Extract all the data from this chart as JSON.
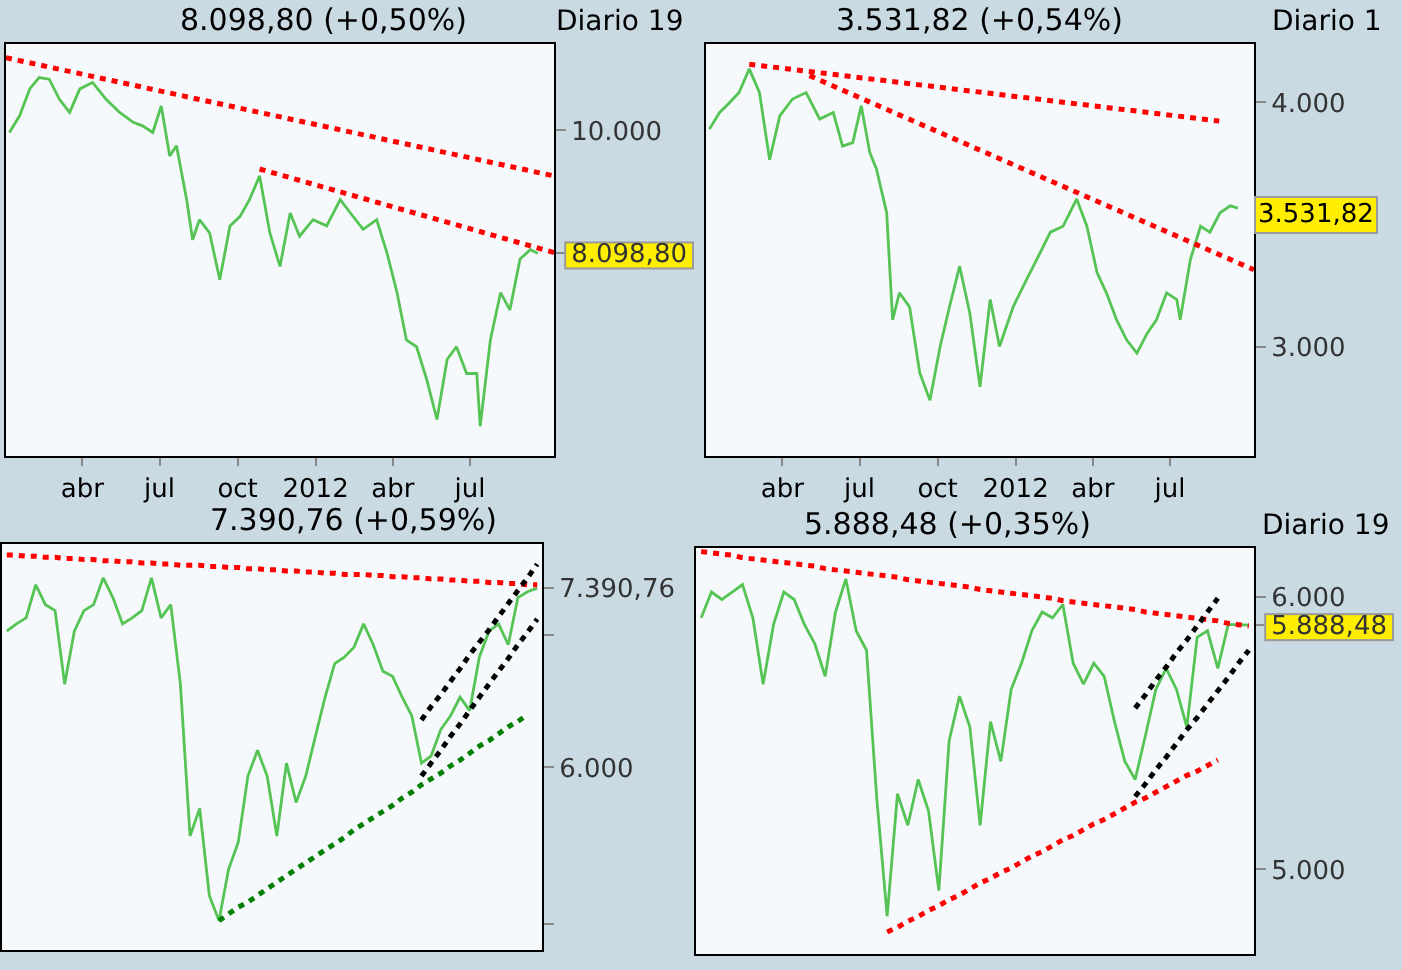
{
  "chart_data": [
    {
      "type": "line",
      "title": "8.098,80 (+0,50%)",
      "subtitle": "Diario 19",
      "log": true,
      "x": [
        "2011-01-05",
        "2011-01-17",
        "2011-01-29",
        "2011-02-09",
        "2011-02-21",
        "2011-03-05",
        "2011-03-17",
        "2011-03-29",
        "2011-04-13",
        "2011-04-29",
        "2011-05-15",
        "2011-05-31",
        "2011-06-11",
        "2011-06-23",
        "2011-07-03",
        "2011-07-13",
        "2011-07-21",
        "2011-08-02",
        "2011-08-09",
        "2011-08-17",
        "2011-08-29",
        "2011-09-10",
        "2011-09-22",
        "2011-10-04",
        "2011-10-15",
        "2011-10-27",
        "2011-11-08",
        "2011-11-20",
        "2011-12-02",
        "2011-12-13",
        "2011-12-29",
        "2012-01-14",
        "2012-01-30",
        "2012-02-11",
        "2012-02-26",
        "2012-03-13",
        "2012-03-25",
        "2012-04-06",
        "2012-04-17",
        "2012-04-29",
        "2012-05-11",
        "2012-05-23",
        "2012-06-04",
        "2012-06-15",
        "2012-06-27",
        "2012-07-09",
        "2012-07-13",
        "2012-07-25",
        "2012-08-06",
        "2012-08-17",
        "2012-08-29",
        "2012-09-10",
        "2012-09-19"
      ],
      "series": [
        {
          "color": "#55c455",
          "values": [
            9966,
            10256,
            10740,
            10950,
            10920,
            10550,
            10315,
            10740,
            10860,
            10550,
            10315,
            10140,
            10080,
            9966,
            10430,
            9570,
            9740,
            8880,
            8290,
            8580,
            8390,
            7740,
            8490,
            8630,
            8880,
            9250,
            8390,
            7920,
            8680,
            8340,
            8580,
            8490,
            8880,
            8680,
            8440,
            8580,
            8110,
            7570,
            6980,
            6900,
            6520,
            6090,
            6750,
            6900,
            6590,
            6590,
            6020,
            6980,
            7570,
            7350,
            8020,
            8150,
            8098.8
          ]
        },
        {
          "type": "line",
          "color": "#ff0000",
          "line_style": "dotted",
          "x": [
            "2011-01-01",
            "2012-10-08"
          ],
          "values": [
            11330,
            9250
          ]
        },
        {
          "type": "line",
          "color": "#ff0000",
          "line_style": "dotted",
          "x": [
            "2011-10-27",
            "2012-10-08"
          ],
          "values": [
            9360,
            8110
          ]
        }
      ],
      "xlim": [
        "2011-01-01",
        "2012-10-08"
      ],
      "xticks": [
        {
          "value": "2011-04-01",
          "label": "abr"
        },
        {
          "value": "2011-07-01",
          "label": "jul"
        },
        {
          "value": "2011-10-01",
          "label": "oct"
        },
        {
          "value": "2012-01-01",
          "label": "2012"
        },
        {
          "value": "2012-04-01",
          "label": "abr"
        },
        {
          "value": "2012-07-01",
          "label": "jul"
        }
      ],
      "ylim": [
        5720,
        11600
      ],
      "yticks": [
        {
          "value": 8098.8,
          "label": "8.098,80"
        },
        {
          "value": 10000,
          "label": "10.000"
        }
      ]
    },
    {
      "type": "line",
      "title": "3.531,82 (+0,54%)",
      "subtitle": "Diario 1",
      "log": true,
      "x": [
        "2011-01-05",
        "2011-01-17",
        "2011-01-29",
        "2011-02-09",
        "2011-02-21",
        "2011-03-05",
        "2011-03-17",
        "2011-03-29",
        "2011-04-13",
        "2011-04-29",
        "2011-05-15",
        "2011-05-31",
        "2011-06-11",
        "2011-06-23",
        "2011-07-03",
        "2011-07-13",
        "2011-07-21",
        "2011-08-02",
        "2011-08-09",
        "2011-08-17",
        "2011-08-29",
        "2011-09-10",
        "2011-09-22",
        "2011-10-04",
        "2011-10-15",
        "2011-10-27",
        "2011-11-08",
        "2011-11-20",
        "2011-12-02",
        "2011-12-13",
        "2011-12-29",
        "2012-01-14",
        "2012-01-30",
        "2012-02-11",
        "2012-02-26",
        "2012-03-13",
        "2012-03-25",
        "2012-04-06",
        "2012-04-17",
        "2012-04-29",
        "2012-05-11",
        "2012-05-23",
        "2012-06-04",
        "2012-06-15",
        "2012-06-27",
        "2012-07-09",
        "2012-07-13",
        "2012-07-25",
        "2012-08-06",
        "2012-08-17",
        "2012-08-29",
        "2012-09-10",
        "2012-09-19"
      ],
      "series": [
        {
          "color": "#55c455",
          "values": [
            3876,
            3953,
            4000,
            4047,
            4161,
            4047,
            3739,
            3937,
            4016,
            4047,
            3922,
            3953,
            3799,
            3815,
            3984,
            3772,
            3697,
            3512,
            3096,
            3196,
            3143,
            2908,
            2816,
            3000,
            3143,
            3298,
            3120,
            2861,
            3171,
            3000,
            3143,
            3247,
            3351,
            3433,
            3457,
            3570,
            3457,
            3273,
            3196,
            3096,
            3023,
            2977,
            3047,
            3096,
            3196,
            3171,
            3096,
            3324,
            3457,
            3433,
            3512,
            3541,
            3531.82
          ]
        },
        {
          "type": "line",
          "color": "#ff0000",
          "line_style": "dotted",
          "x": [
            "2011-02-21",
            "2012-08-28"
          ],
          "values": [
            4184,
            3913
          ]
        },
        {
          "type": "line",
          "color": "#ff0000",
          "line_style": "dotted",
          "x": [
            "2011-05-03",
            "2012-10-08"
          ],
          "values": [
            4128,
            3284
          ]
        }
      ],
      "xlim": [
        "2011-01-01",
        "2012-10-08"
      ],
      "xticks": [
        {
          "value": "2011-04-01",
          "label": "abr"
        },
        {
          "value": "2011-07-01",
          "label": "jul"
        },
        {
          "value": "2011-10-01",
          "label": "oct"
        },
        {
          "value": "2012-01-01",
          "label": "2012"
        },
        {
          "value": "2012-04-01",
          "label": "abr"
        },
        {
          "value": "2012-07-01",
          "label": "jul"
        }
      ],
      "ylim": [
        2637,
        4285
      ],
      "yticks": [
        {
          "value": 3000,
          "label": "3.000"
        },
        {
          "value": 4000,
          "label": "4.000"
        }
      ],
      "annotations": [
        {
          "text": "3.531,82",
          "x": "2012-09-19",
          "y": 3531.82
        }
      ]
    },
    {
      "type": "line",
      "title": "7.390,76 (+0,59%)",
      "log": true,
      "tick_labels": "y",
      "categories": [
        null,
        null,
        null,
        null,
        null,
        null,
        null,
        null,
        null,
        null,
        null,
        null,
        null,
        null,
        null,
        null,
        null,
        null,
        null,
        null,
        null,
        null,
        null,
        null,
        null,
        null,
        null,
        null,
        null,
        null,
        null,
        null,
        null,
        null,
        null,
        null,
        null,
        null,
        null,
        null,
        null,
        null,
        null,
        null,
        null,
        null,
        null,
        null,
        null,
        null,
        null,
        null,
        null,
        null,
        null,
        null
      ],
      "series": [
        {
          "color": "#55c455",
          "values": [
            7030,
            7090,
            7140,
            7420,
            7250,
            7200,
            6610,
            7030,
            7200,
            7250,
            7480,
            7310,
            7090,
            7140,
            7200,
            7480,
            7140,
            7250,
            6610,
            5540,
            5720,
            5170,
            5020,
            5330,
            5500,
            5940,
            6120,
            5940,
            5540,
            6030,
            5760,
            5940,
            6220,
            6510,
            6770,
            6820,
            6900,
            7090,
            6920,
            6710,
            6670,
            6510,
            6370,
            6030,
            6080,
            6270,
            6370,
            6510,
            6410,
            6820,
            7030,
            7090,
            6920,
            7310,
            7360,
            7390.76
          ]
        },
        {
          "type": "line",
          "color": "#ff0000",
          "line_style": "dotted",
          "values": [
            7680,
            7680,
            7670,
            7670,
            7660,
            7660,
            7650,
            7650,
            7640,
            7640,
            7630,
            7630,
            7620,
            7620,
            7610,
            7610,
            7600,
            7600,
            7590,
            7590,
            7590,
            7580,
            7580,
            7570,
            7570,
            7560,
            7560,
            7550,
            7550,
            7540,
            7540,
            7530,
            7530,
            7520,
            7520,
            7510,
            7510,
            7510,
            7500,
            7500,
            7490,
            7490,
            7480,
            7480,
            7470,
            7470,
            7460,
            7460,
            7450,
            7450,
            7440,
            7440,
            7430,
            7430,
            7420,
            7420
          ]
        },
        {
          "type": "line",
          "color": "#008000",
          "line_style": "dotted",
          "values": [
            null,
            null,
            null,
            null,
            null,
            null,
            null,
            null,
            null,
            null,
            null,
            null,
            null,
            null,
            null,
            null,
            null,
            null,
            null,
            null,
            null,
            null,
            5020,
            5060,
            5100,
            5130,
            5170,
            5210,
            5250,
            5290,
            5330,
            5370,
            5410,
            5450,
            5490,
            5530,
            5580,
            5620,
            5660,
            5700,
            5740,
            5790,
            5830,
            5880,
            5920,
            5960,
            6010,
            6050,
            6100,
            6150,
            6190,
            6240,
            6290,
            6330,
            6380,
            null
          ]
        },
        {
          "type": "line",
          "color": "#000000",
          "line_style": "dotted",
          "values": [
            null,
            null,
            null,
            null,
            null,
            null,
            null,
            null,
            null,
            null,
            null,
            null,
            null,
            null,
            null,
            null,
            null,
            null,
            null,
            null,
            null,
            null,
            null,
            null,
            null,
            null,
            null,
            null,
            null,
            null,
            null,
            null,
            null,
            null,
            null,
            null,
            null,
            null,
            null,
            null,
            null,
            null,
            null,
            6340,
            6440,
            6530,
            6630,
            6730,
            6840,
            6940,
            7040,
            7150,
            7260,
            7370,
            7480,
            7600
          ]
        },
        {
          "type": "line",
          "color": "#000000",
          "line_style": "dotted",
          "values": [
            null,
            null,
            null,
            null,
            null,
            null,
            null,
            null,
            null,
            null,
            null,
            null,
            null,
            null,
            null,
            null,
            null,
            null,
            null,
            null,
            null,
            null,
            null,
            null,
            null,
            null,
            null,
            null,
            null,
            null,
            null,
            null,
            null,
            null,
            null,
            null,
            null,
            null,
            null,
            null,
            null,
            null,
            null,
            5940,
            6030,
            6120,
            6220,
            6310,
            6410,
            6510,
            6610,
            6710,
            6810,
            6920,
            7020,
            7130
          ]
        }
      ],
      "ylim": [
        4852,
        7780
      ],
      "yticks": [
        {
          "value": 5000,
          "label": null
        },
        {
          "value": 6000,
          "label": "6.000"
        },
        {
          "value": 7000,
          "label": null
        },
        {
          "value": 7390.76,
          "label": "7.390,76"
        }
      ]
    },
    {
      "type": "line",
      "title": "5.888,48 (+0,35%)",
      "subtitle": "Diario 19",
      "log": true,
      "tick_labels": "y",
      "categories": [
        null,
        null,
        null,
        null,
        null,
        null,
        null,
        null,
        null,
        null,
        null,
        null,
        null,
        null,
        null,
        null,
        null,
        null,
        null,
        null,
        null,
        null,
        null,
        null,
        null,
        null,
        null,
        null,
        null,
        null,
        null,
        null,
        null,
        null,
        null,
        null,
        null,
        null,
        null,
        null,
        null,
        null,
        null,
        null,
        null,
        null,
        null,
        null,
        null,
        null,
        null,
        null,
        null,
        null
      ],
      "series": [
        {
          "color": "#55c455",
          "values": [
            5917,
            6020,
            5990,
            6020,
            6050,
            5917,
            5660,
            5890,
            6020,
            5990,
            5890,
            5815,
            5690,
            5940,
            6073,
            5866,
            5790,
            5240,
            4846,
            5260,
            5150,
            5310,
            5200,
            4930,
            5450,
            5615,
            5500,
            5150,
            5520,
            5375,
            5640,
            5740,
            5866,
            5940,
            5917,
            5970,
            5740,
            5660,
            5740,
            5690,
            5520,
            5375,
            5310,
            5470,
            5640,
            5720,
            5640,
            5500,
            5840,
            5866,
            5720,
            5890,
            5890,
            5888.48
          ]
        },
        {
          "type": "line",
          "color": "#ff0000",
          "line_style": "dotted",
          "values": [
            6185,
            6180,
            6175,
            6170,
            6160,
            6155,
            6150,
            6145,
            6140,
            6135,
            6130,
            6125,
            6115,
            6110,
            6105,
            6100,
            6095,
            6090,
            6085,
            6080,
            6070,
            6065,
            6060,
            6055,
            6050,
            6045,
            6040,
            6030,
            6025,
            6020,
            6015,
            6010,
            6005,
            6000,
            5995,
            5985,
            5980,
            5975,
            5970,
            5965,
            5960,
            5955,
            5950,
            5940,
            5935,
            5930,
            5925,
            5920,
            5915,
            5910,
            5905,
            5895,
            5890,
            5885
          ]
        },
        {
          "type": "line",
          "color": "#ff0000",
          "line_style": "dotted",
          "values": [
            null,
            null,
            null,
            null,
            null,
            null,
            null,
            null,
            null,
            null,
            null,
            null,
            null,
            null,
            null,
            null,
            null,
            null,
            4795,
            4810,
            4830,
            4845,
            4865,
            4880,
            4900,
            4915,
            4935,
            4955,
            4970,
            4990,
            5005,
            5025,
            5045,
            5060,
            5080,
            5100,
            5115,
            5135,
            5155,
            5170,
            5190,
            5210,
            5230,
            5245,
            5265,
            5285,
            5305,
            5325,
            5340,
            5360,
            5380,
            null,
            null,
            null
          ]
        },
        {
          "type": "line",
          "color": "#000000",
          "line_style": "dotted",
          "values": [
            null,
            null,
            null,
            null,
            null,
            null,
            null,
            null,
            null,
            null,
            null,
            null,
            null,
            null,
            null,
            null,
            null,
            null,
            null,
            null,
            null,
            null,
            null,
            null,
            null,
            null,
            null,
            null,
            null,
            null,
            null,
            null,
            null,
            null,
            null,
            null,
            null,
            null,
            null,
            null,
            null,
            null,
            5570,
            5620,
            5675,
            5725,
            5780,
            5830,
            5885,
            5940,
            5995,
            null,
            null,
            null
          ]
        },
        {
          "type": "line",
          "color": "#000000",
          "line_style": "dotted",
          "values": [
            null,
            null,
            null,
            null,
            null,
            null,
            null,
            null,
            null,
            null,
            null,
            null,
            null,
            null,
            null,
            null,
            null,
            null,
            null,
            null,
            null,
            null,
            null,
            null,
            null,
            null,
            null,
            null,
            null,
            null,
            null,
            null,
            null,
            null,
            null,
            null,
            null,
            null,
            null,
            null,
            null,
            null,
            5250,
            5295,
            5345,
            5390,
            5440,
            5490,
            5535,
            5585,
            5635,
            5685,
            5740,
            5790
          ]
        }
      ],
      "ylim": [
        4725,
        6200
      ],
      "yticks": [
        {
          "value": 5000,
          "label": "5.000"
        },
        {
          "value": 5888.48,
          "label": "5.888,48"
        },
        {
          "value": 6000,
          "label": "6.000"
        }
      ]
    }
  ]
}
